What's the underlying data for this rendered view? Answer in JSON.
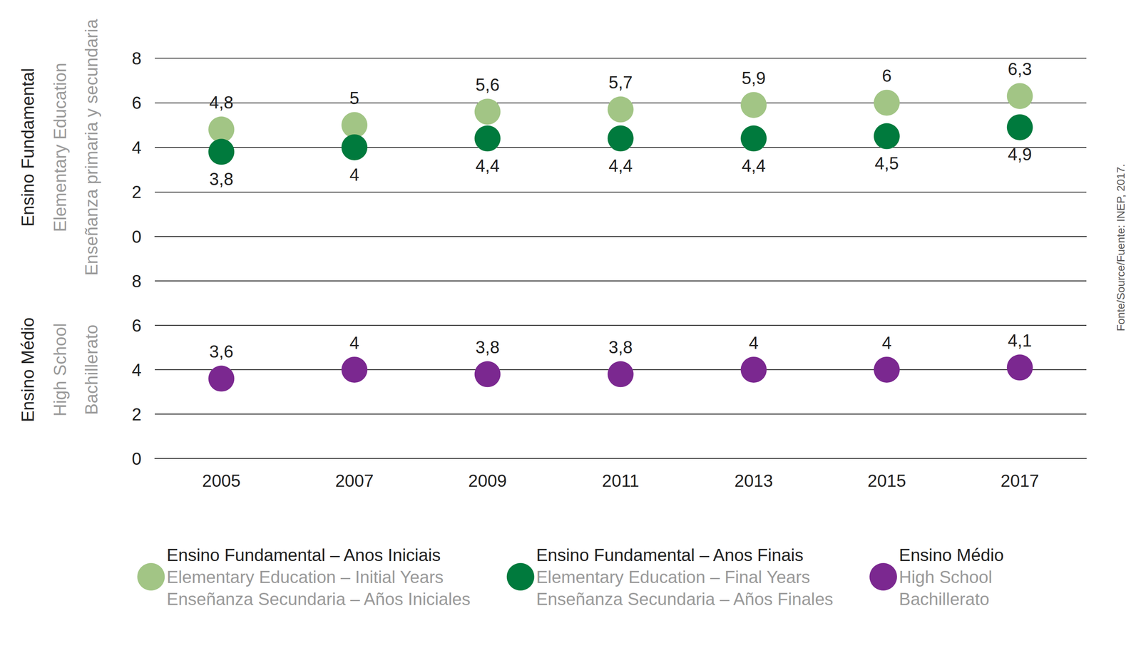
{
  "chart_data": [
    {
      "type": "scatter",
      "y_label": [
        "Ensino Fundamental",
        "Elementary Education",
        "Enseñanza primaria y secundaria"
      ],
      "categories": [
        "2005",
        "2007",
        "2009",
        "2011",
        "2013",
        "2015",
        "2017"
      ],
      "series": [
        {
          "name": "Ensino Fundamental – Anos Iniciais\nElementary Education – Initial Years\nEnseñanza Secundaria – Años Iniciales",
          "color": "#a2c585",
          "values": [
            4.8,
            5,
            5.6,
            5.7,
            5.9,
            6,
            6.3
          ],
          "value_labels": [
            "4,8",
            "5",
            "5,6",
            "5,7",
            "5,9",
            "6",
            "6,3"
          ]
        },
        {
          "name": "Ensino Fundamental – Anos Finais\nElementary Education – Final Years\nEnseñanza Secundaria – Años Finales",
          "color": "#007a3d",
          "values": [
            3.8,
            4,
            4.4,
            4.4,
            4.4,
            4.5,
            4.9
          ],
          "value_labels": [
            "3,8",
            "4",
            "4,4",
            "4,4",
            "4,4",
            "4,5",
            "4,9"
          ]
        }
      ],
      "ylim": [
        0,
        8
      ],
      "yticks": [
        0,
        2,
        4,
        6,
        8
      ],
      "grid": true,
      "data_labels": true,
      "tick_labels": "y",
      "legend": "bottom",
      "marker": "circle"
    },
    {
      "type": "scatter",
      "y_label": [
        "Ensino Médio",
        "High School",
        "Bachillerato"
      ],
      "categories": [
        "2005",
        "2007",
        "2009",
        "2011",
        "2013",
        "2015",
        "2017"
      ],
      "series": [
        {
          "name": "Ensino Médio\nHigh School\nBachillerato",
          "color": "#7b2890",
          "values": [
            3.6,
            4,
            3.8,
            3.8,
            4,
            4,
            4.1
          ],
          "value_labels": [
            "3,6",
            "4",
            "3,8",
            "3,8",
            "4",
            "4",
            "4,1"
          ]
        }
      ],
      "ylim": [
        0,
        8
      ],
      "yticks": [
        0,
        2,
        4,
        6,
        8
      ],
      "grid": true,
      "data_labels": true,
      "legend": "bottom",
      "marker": "circle",
      "annotations": [
        "Fonte/Source/Fuente: INEP, 2017."
      ]
    }
  ]
}
